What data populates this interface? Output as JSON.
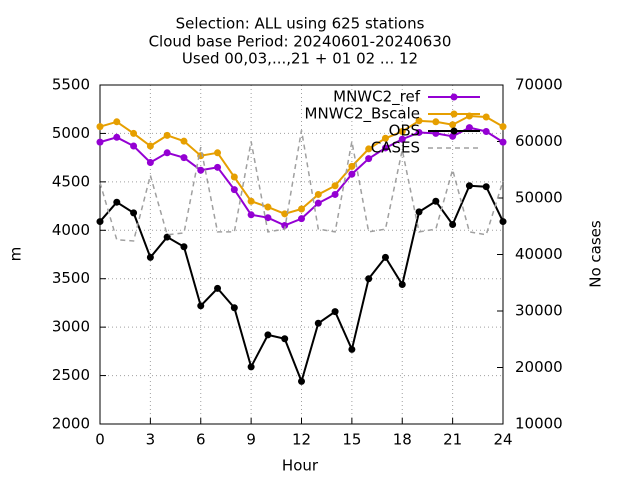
{
  "chart_data": {
    "type": "line",
    "title": [
      "Selection: ALL using   625 stations",
      "Cloud base   Period: 20240601-20240630",
      "Used 00,03,...,21 + 01 02 ... 12"
    ],
    "xlabel": "Hour",
    "ylabel": "m",
    "y2label": "No cases",
    "x": [
      0,
      1,
      2,
      3,
      4,
      5,
      6,
      7,
      8,
      9,
      10,
      11,
      12,
      13,
      14,
      15,
      16,
      17,
      18,
      19,
      20,
      21,
      22,
      23,
      24
    ],
    "xlim": [
      0,
      24
    ],
    "xticks": [
      0,
      3,
      6,
      9,
      12,
      15,
      18,
      21,
      24
    ],
    "ylim": [
      2000,
      5500
    ],
    "yticks": [
      2000,
      2500,
      3000,
      3500,
      4000,
      4500,
      5000,
      5500
    ],
    "y2lim": [
      10000,
      70000
    ],
    "y2ticks": [
      10000,
      20000,
      30000,
      40000,
      50000,
      60000,
      70000
    ],
    "grid": true,
    "legend": "top-right",
    "series": [
      {
        "name": "MNWC2_ref",
        "color": "#9400d3",
        "marker": true,
        "values": [
          4910,
          4960,
          4870,
          4700,
          4800,
          4750,
          4620,
          4650,
          4420,
          4160,
          4130,
          4050,
          4120,
          4280,
          4370,
          4580,
          4740,
          4850,
          4940,
          5010,
          5000,
          4970,
          5060,
          5020,
          4910
        ]
      },
      {
        "name": "MNWC2_Bscale",
        "color": "#e69f00",
        "marker": true,
        "values": [
          5070,
          5120,
          5000,
          4870,
          4980,
          4920,
          4770,
          4800,
          4550,
          4300,
          4240,
          4170,
          4220,
          4370,
          4460,
          4660,
          4840,
          4950,
          5020,
          5130,
          5120,
          5090,
          5180,
          5170,
          5070
        ]
      },
      {
        "name": "OBS",
        "color": "#000000",
        "marker": true,
        "values": [
          4090,
          4290,
          4180,
          3720,
          3930,
          3830,
          3220,
          3400,
          3200,
          2590,
          2920,
          2880,
          2440,
          3040,
          3160,
          2770,
          3500,
          3720,
          3440,
          4190,
          4300,
          4060,
          4460,
          4450,
          4090
        ]
      },
      {
        "name": "CASES",
        "color": "#a0a0a0",
        "marker": false,
        "dashed": true,
        "axis": "y2",
        "values": [
          52700,
          42600,
          42400,
          54000,
          43500,
          43800,
          59000,
          44000,
          44000,
          60000,
          44000,
          44500,
          62000,
          44500,
          44000,
          60000,
          44000,
          44500,
          58500,
          44000,
          44500,
          55000,
          44000,
          43500,
          53000
        ]
      }
    ]
  }
}
